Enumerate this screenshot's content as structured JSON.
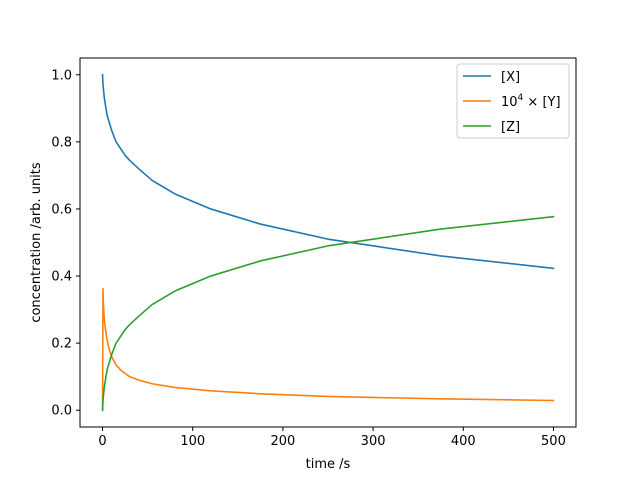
{
  "chart_data": {
    "type": "line",
    "xlabel": "time /s",
    "ylabel": "concentration /arb. units",
    "xlim": [
      -25,
      525
    ],
    "ylim": [
      -0.05,
      1.05
    ],
    "xticks": [
      0,
      100,
      200,
      300,
      400,
      500
    ],
    "xtick_labels": [
      "0",
      "100",
      "200",
      "300",
      "400",
      "500"
    ],
    "yticks": [
      0.0,
      0.2,
      0.4,
      0.6,
      0.8,
      1.0
    ],
    "ytick_labels": [
      "0.0",
      "0.2",
      "0.4",
      "0.6",
      "0.8",
      "1.0"
    ],
    "grid": false,
    "legend_position": "top-right",
    "series": [
      {
        "name": "[X]",
        "color": "#1f77b4",
        "x": [
          0,
          0.5,
          2,
          5,
          10,
          15,
          20,
          25,
          30,
          40,
          55,
          80,
          120,
          175,
          250,
          300,
          375,
          500
        ],
        "y": [
          1.0,
          0.97,
          0.93,
          0.88,
          0.835,
          0.8,
          0.78,
          0.76,
          0.745,
          0.72,
          0.685,
          0.645,
          0.6,
          0.555,
          0.51,
          0.49,
          0.46,
          0.423
        ]
      },
      {
        "name": "10^4 × [Y]",
        "label_base": "10",
        "label_exp": "4",
        "label_rest": " × [Y]",
        "color": "#ff7f0e",
        "x": [
          0,
          0.5,
          1,
          2,
          3,
          5,
          7,
          10,
          15,
          20,
          25,
          30,
          40,
          55,
          80,
          120,
          175,
          250,
          300,
          375,
          500
        ],
        "y": [
          0.0,
          0.362,
          0.31,
          0.27,
          0.245,
          0.21,
          0.185,
          0.16,
          0.135,
          0.12,
          0.11,
          0.1,
          0.09,
          0.079,
          0.068,
          0.058,
          0.049,
          0.041,
          0.038,
          0.034,
          0.029
        ]
      },
      {
        "name": "[Z]",
        "color": "#2ca02c",
        "x": [
          0,
          0.5,
          2,
          5,
          10,
          15,
          20,
          25,
          30,
          40,
          55,
          80,
          120,
          175,
          250,
          300,
          375,
          500
        ],
        "y": [
          0.0,
          0.03,
          0.07,
          0.12,
          0.165,
          0.2,
          0.22,
          0.24,
          0.255,
          0.28,
          0.315,
          0.355,
          0.4,
          0.445,
          0.49,
          0.51,
          0.54,
          0.577
        ]
      }
    ]
  }
}
